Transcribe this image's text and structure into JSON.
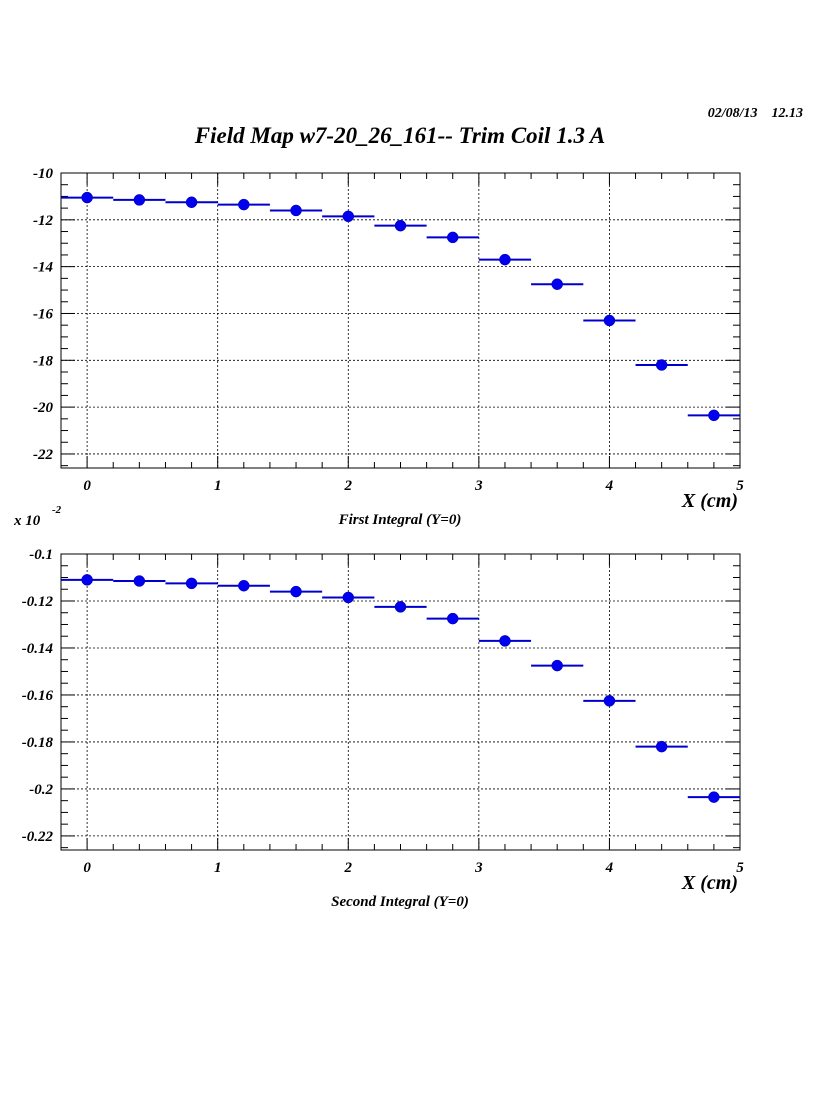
{
  "header": {
    "title": "Field Map w7-20_26_161-- Trim Coil 1.3 A",
    "date": "02/08/13",
    "time": "12.13"
  },
  "colors": {
    "marker": "#0000ee",
    "errbar": "#0000cc",
    "axis": "#000000",
    "grid": "#000000"
  },
  "chart_data": [
    {
      "type": "scatter",
      "title": "First Integral (Y=0)",
      "xlabel": "X (cm)",
      "ylabel": "",
      "xlim": [
        -0.2,
        5
      ],
      "ylim": [
        -22.6,
        -10
      ],
      "grid": true,
      "x_ticks": [
        0,
        1,
        2,
        3,
        4,
        5
      ],
      "x_tick_labels": [
        "0",
        "1",
        "2",
        "3",
        "4",
        "5"
      ],
      "y_ticks": [
        -10,
        -12,
        -14,
        -16,
        -18,
        -20,
        -22
      ],
      "y_tick_labels": [
        "-10",
        "-12",
        "-14",
        "-16",
        "-18",
        "-20",
        "-22"
      ],
      "x": [
        0,
        0.4,
        0.8,
        1.2,
        1.6,
        2.0,
        2.4,
        2.8,
        3.2,
        3.6,
        4.0,
        4.4,
        4.8
      ],
      "y": [
        -11.05,
        -11.15,
        -11.25,
        -11.35,
        -11.6,
        -11.85,
        -12.25,
        -12.75,
        -13.7,
        -14.75,
        -16.3,
        -18.2,
        -20.35
      ],
      "x_err": 0.2
    },
    {
      "type": "scatter",
      "title": "Second Integral (Y=0)",
      "xlabel": "X (cm)",
      "ylabel": "",
      "y_multiplier": "x 10",
      "y_multiplier_exp": "-2",
      "xlim": [
        -0.2,
        5
      ],
      "ylim": [
        -0.226,
        -0.1
      ],
      "grid": true,
      "x_ticks": [
        0,
        1,
        2,
        3,
        4,
        5
      ],
      "x_tick_labels": [
        "0",
        "1",
        "2",
        "3",
        "4",
        "5"
      ],
      "y_ticks": [
        -0.1,
        -0.12,
        -0.14,
        -0.16,
        -0.18,
        -0.2,
        -0.22
      ],
      "y_tick_labels": [
        "-0.1",
        "-0.12",
        "-0.14",
        "-0.16",
        "-0.18",
        "-0.2",
        "-0.22"
      ],
      "x": [
        0,
        0.4,
        0.8,
        1.2,
        1.6,
        2.0,
        2.4,
        2.8,
        3.2,
        3.6,
        4.0,
        4.4,
        4.8
      ],
      "y": [
        -0.111,
        -0.1115,
        -0.1125,
        -0.1135,
        -0.116,
        -0.1185,
        -0.1225,
        -0.1275,
        -0.137,
        -0.1475,
        -0.1625,
        -0.182,
        -0.2035
      ],
      "x_err": 0.2
    }
  ]
}
